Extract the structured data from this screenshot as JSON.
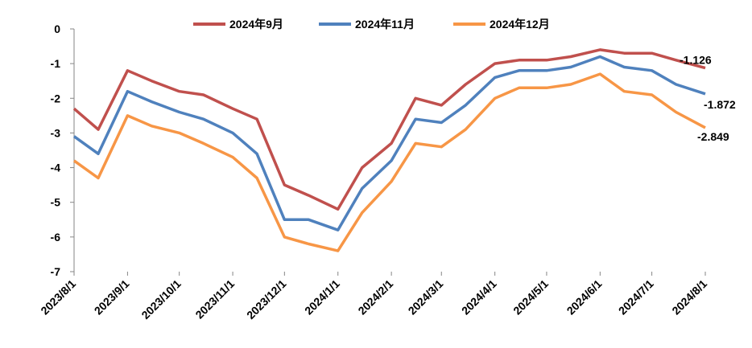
{
  "chart_data": {
    "type": "line",
    "title": "",
    "xlabel": "",
    "ylabel": "",
    "ylim": [
      -7,
      0
    ],
    "yticks": [
      "0",
      "-1",
      "-2",
      "-3",
      "-4",
      "-5",
      "-6",
      "-7"
    ],
    "x_tick_labels": [
      "2023/8/1",
      "2023/9/1",
      "2023/10/1",
      "2023/11/1",
      "2023/12/1",
      "2024/1/1",
      "2024/2/1",
      "2024/3/1",
      "2024/4/1",
      "2024/5/1",
      "2024/6/1",
      "2024/7/1",
      "2024/8/1"
    ],
    "grid": false,
    "legend_position": "top",
    "x_dates": [
      "2023-08-01",
      "2023-08-15",
      "2023-09-01",
      "2023-09-15",
      "2023-10-01",
      "2023-10-15",
      "2023-11-01",
      "2023-11-15",
      "2023-12-01",
      "2023-12-15",
      "2024-01-01",
      "2024-01-15",
      "2024-02-01",
      "2024-02-15",
      "2024-03-01",
      "2024-03-15",
      "2024-04-01",
      "2024-04-15",
      "2024-05-01",
      "2024-05-15",
      "2024-06-01",
      "2024-06-15",
      "2024-07-01",
      "2024-07-15",
      "2024-08-01"
    ],
    "series": [
      {
        "name": "2024年9月",
        "color": "#c0504d",
        "values": [
          -2.3,
          -2.9,
          -1.2,
          -1.5,
          -1.8,
          -1.9,
          -2.3,
          -2.6,
          -4.5,
          -4.8,
          -5.2,
          -4.0,
          -3.3,
          -2.0,
          -2.2,
          -1.6,
          -1.0,
          -0.9,
          -0.9,
          -0.8,
          -0.6,
          -0.7,
          -0.7,
          -0.9,
          -1.126
        ]
      },
      {
        "name": "2024年11月",
        "color": "#4f81bd",
        "values": [
          -3.1,
          -3.6,
          -1.8,
          -2.1,
          -2.4,
          -2.6,
          -3.0,
          -3.6,
          -5.5,
          -5.5,
          -5.8,
          -4.6,
          -3.8,
          -2.6,
          -2.7,
          -2.2,
          -1.4,
          -1.2,
          -1.2,
          -1.1,
          -0.8,
          -1.1,
          -1.2,
          -1.6,
          -1.872
        ]
      },
      {
        "name": "2024年12月",
        "color": "#f79646",
        "values": [
          -3.8,
          -4.3,
          -2.5,
          -2.8,
          -3.0,
          -3.3,
          -3.7,
          -4.3,
          -6.0,
          -6.2,
          -6.4,
          -5.3,
          -4.4,
          -3.3,
          -3.4,
          -2.9,
          -2.0,
          -1.7,
          -1.7,
          -1.6,
          -1.3,
          -1.8,
          -1.9,
          -2.4,
          -2.849
        ]
      }
    ],
    "end_labels": [
      "-1.126",
      "-1.872",
      "-2.849"
    ]
  }
}
